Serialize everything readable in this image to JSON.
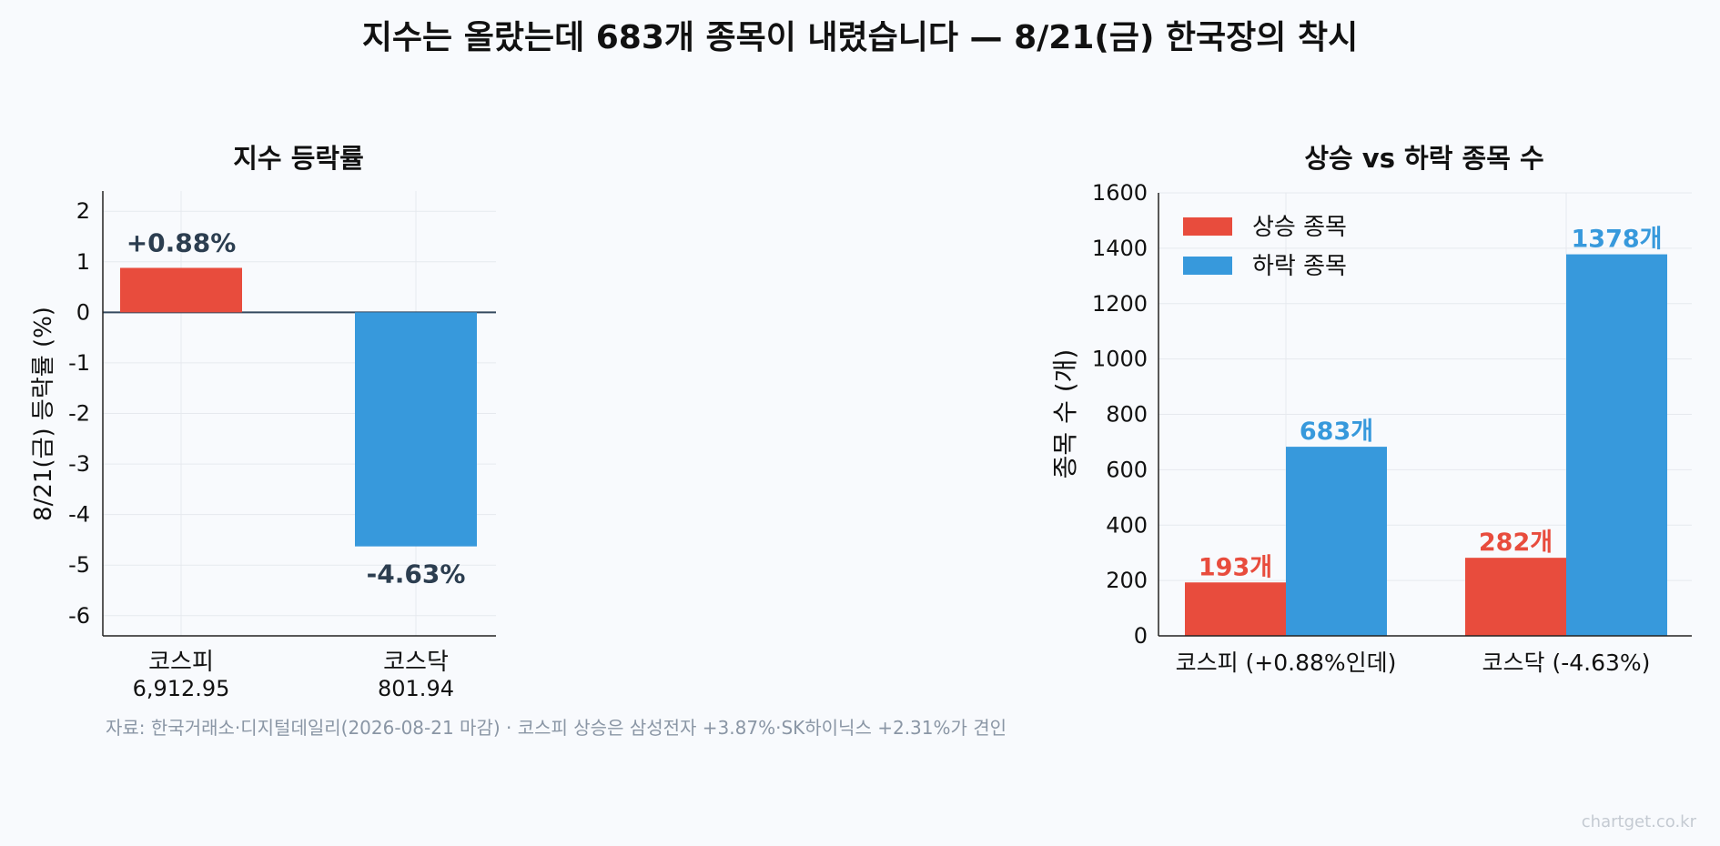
{
  "title": "지수는 올랐는데 683개 종목이 내렸습니다 — 8/21(금) 한국장의 착시",
  "source": "자료: 한국거래소·디지털데일리(2026-08-21 마감) · 코스피 상승은 삼성전자 +3.87%·SK하이닉스 +2.31%가 견인",
  "watermark": "chartget.co.kr",
  "colors": {
    "up": "#e84c3d",
    "down": "#3799dc",
    "label_dark": "#2c3e50"
  },
  "chart_data": [
    {
      "type": "bar",
      "title": "지수 등락률",
      "ylabel": "8/21(금) 등락률 (%)",
      "ylim": [
        -6.4,
        2.4
      ],
      "yticks": [
        "2",
        "1",
        "0",
        "-1",
        "-2",
        "-3",
        "-4",
        "-5",
        "-6"
      ],
      "categories": [
        {
          "name": "코스피",
          "sub": "6,912.95"
        },
        {
          "name": "코스닥",
          "sub": "801.94"
        }
      ],
      "values": [
        0.88,
        -4.63
      ],
      "data_labels": [
        "+0.88%",
        "-4.63%"
      ],
      "grid": true
    },
    {
      "type": "bar",
      "title": "상승 vs 하락 종목 수",
      "ylabel": "종목 수 (개)",
      "ylim": [
        0,
        1600
      ],
      "yticks": [
        "1600",
        "1400",
        "1200",
        "1000",
        "800",
        "600",
        "400",
        "200",
        "0"
      ],
      "categories": [
        "코스피 (+0.88%인데)",
        "코스닥 (-4.63%)"
      ],
      "series": [
        {
          "name": "상승 종목",
          "values": [
            193,
            282
          ],
          "labels": [
            "193개",
            "282개"
          ]
        },
        {
          "name": "하락 종목",
          "values": [
            683,
            1378
          ],
          "labels": [
            "683개",
            "1378개"
          ]
        }
      ],
      "legend": "top-left",
      "grid": true
    }
  ]
}
